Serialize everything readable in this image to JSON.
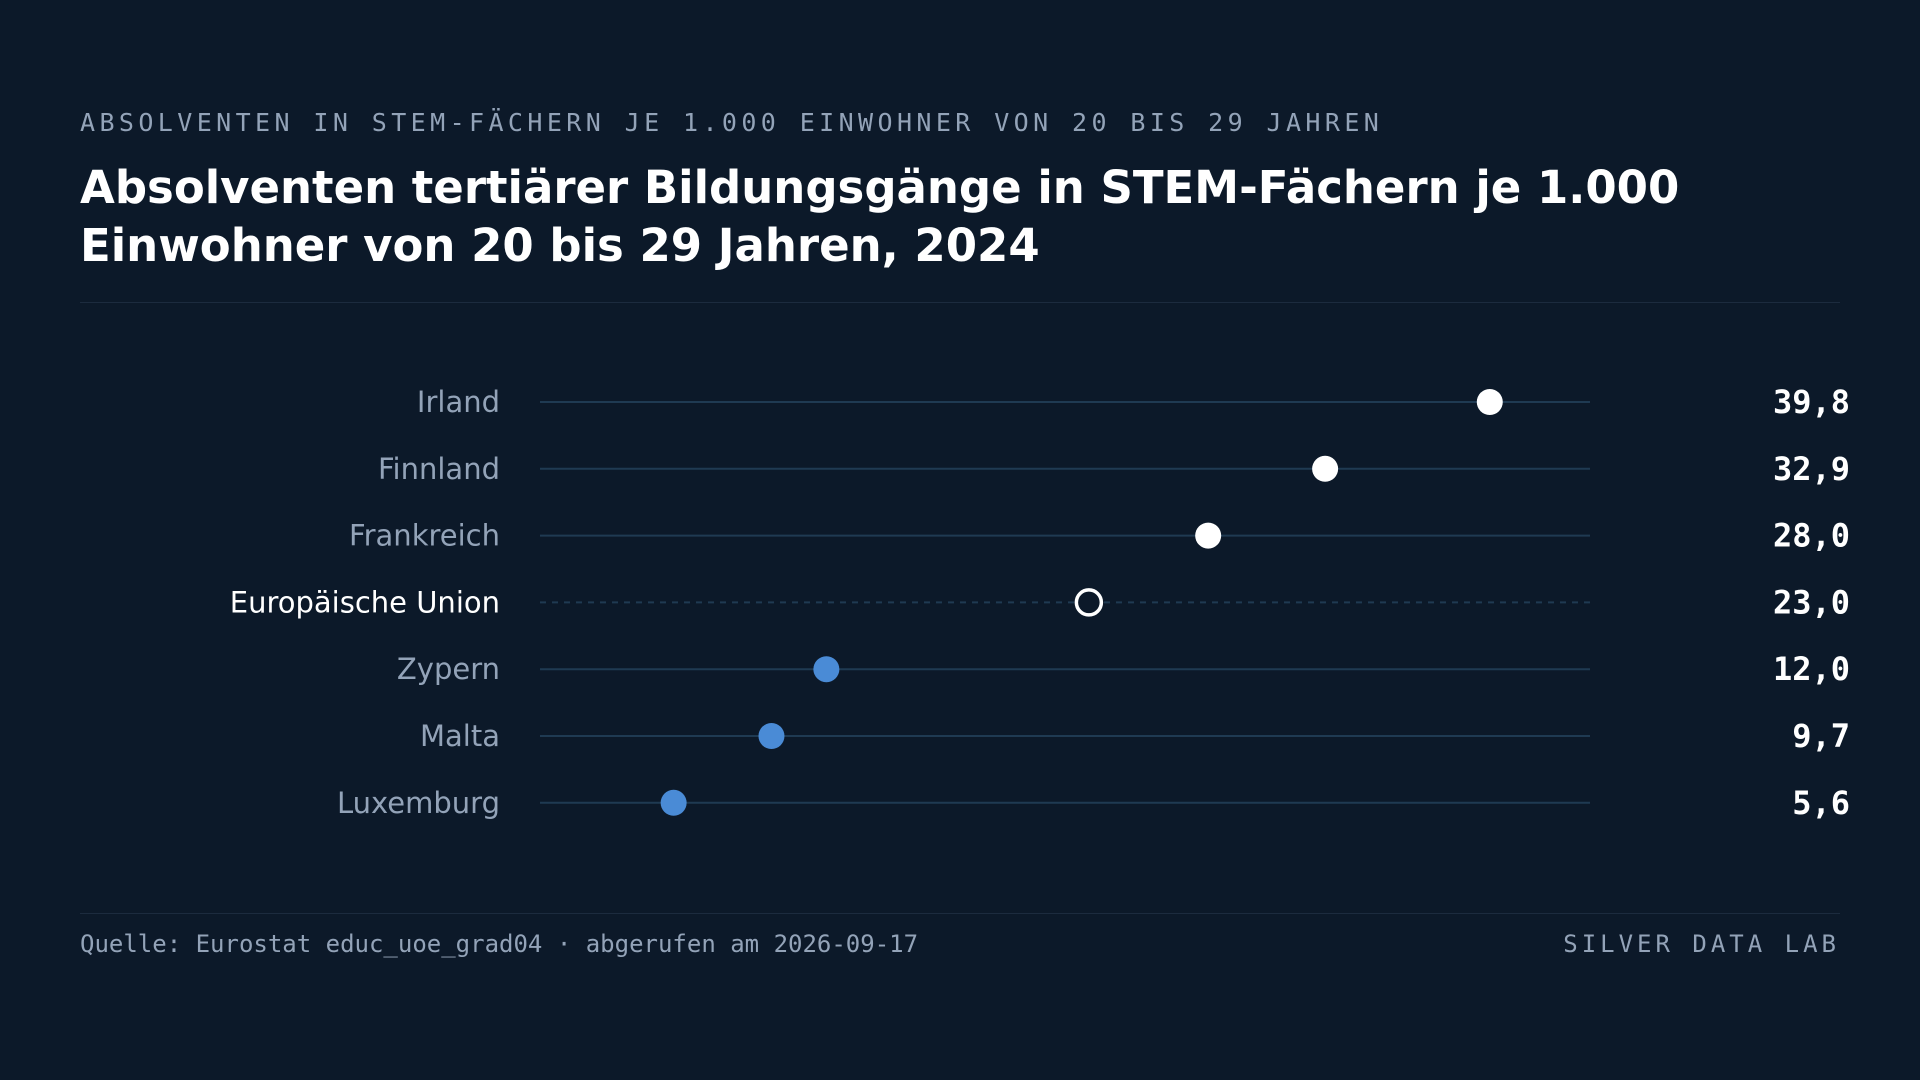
{
  "header": {
    "kicker": "ABSOLVENTEN IN STEM-FÄCHERN JE 1.000 EINWOHNER VON 20 BIS 29 JAHREN",
    "title": "Absolventen tertiärer Bildungsgänge in STEM-Fächern je 1.000 Einwohner von 20 bis 29 Jahren, 2024"
  },
  "chart_data": {
    "type": "scatter",
    "subtype": "dot-plot",
    "xlim": [
      0,
      44
    ],
    "grid": false,
    "legend": "none",
    "colors": {
      "high": "#ffffff",
      "low": "#4a8bd6",
      "reference": "#ffffff",
      "track": "#1f3a52",
      "label": "#93a3b8",
      "reference_label": "#ffffff",
      "value": "#ffffff"
    },
    "points": [
      {
        "label": "Irland",
        "value": 39.8,
        "display": "39,8",
        "group": "high"
      },
      {
        "label": "Finnland",
        "value": 32.9,
        "display": "32,9",
        "group": "high"
      },
      {
        "label": "Frankreich",
        "value": 28.0,
        "display": "28,0",
        "group": "high"
      },
      {
        "label": "Europäische Union",
        "value": 23.0,
        "display": "23,0",
        "group": "reference"
      },
      {
        "label": "Zypern",
        "value": 12.0,
        "display": "12,0",
        "group": "low"
      },
      {
        "label": "Malta",
        "value": 9.7,
        "display": "9,7",
        "group": "low"
      },
      {
        "label": "Luxemburg",
        "value": 5.6,
        "display": "5,6",
        "group": "low"
      }
    ]
  },
  "footer": {
    "source": "Quelle: Eurostat educ_uoe_grad04 · abgerufen am 2026-09-17",
    "brand": "SILVER DATA LAB"
  }
}
